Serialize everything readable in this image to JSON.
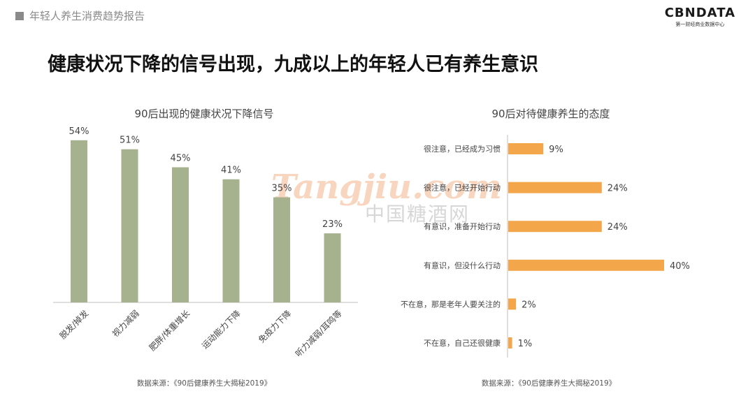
{
  "header": {
    "section_tag": "年轻人养生消费趋势报告"
  },
  "logo": {
    "text": "CBNDATA",
    "subtitle": "第一财经商业数据中心"
  },
  "page_title": "健康状况下降的信号出现，九成以上的年轻人已有养生意识",
  "watermark": {
    "text": "Tangjiu.com",
    "text_cn": "中国糖酒网"
  },
  "colors": {
    "bar_green": "#a6b18e",
    "bar_orange": "#f4a64a",
    "axis": "#bfbfbf"
  },
  "chart_data": [
    {
      "type": "bar",
      "orientation": "vertical",
      "title": "90后出现的健康状况下降信号",
      "categories": [
        "脱发/掉发",
        "视力减弱",
        "肥胖/体重增长",
        "运动能力下降",
        "免疫力下降",
        "听力减弱/耳鸣等"
      ],
      "values": [
        54,
        51,
        45,
        41,
        35,
        23
      ],
      "value_labels": [
        "54%",
        "51%",
        "45%",
        "41%",
        "35%",
        "23%"
      ],
      "unit": "%",
      "ylim": [
        0,
        60
      ],
      "grid": false,
      "source": "数据来源：《90后健康养生大揭秘2019》"
    },
    {
      "type": "bar",
      "orientation": "horizontal",
      "title": "90后对待健康养生的态度",
      "categories": [
        "很注意，已经成为习惯",
        "很注意，已经开始行动",
        "有意识，准备开始行动",
        "有意识，但没什么行动",
        "不在意，那是老年人要关注的",
        "不在意，自己还很健康"
      ],
      "values": [
        9,
        24,
        24,
        40,
        2,
        1
      ],
      "value_labels": [
        "9%",
        "24%",
        "24%",
        "40%",
        "2%",
        "1%"
      ],
      "unit": "%",
      "xlim": [
        0,
        40
      ],
      "grid": false,
      "source": "数据来源：《90后健康养生大揭秘2019》"
    }
  ]
}
